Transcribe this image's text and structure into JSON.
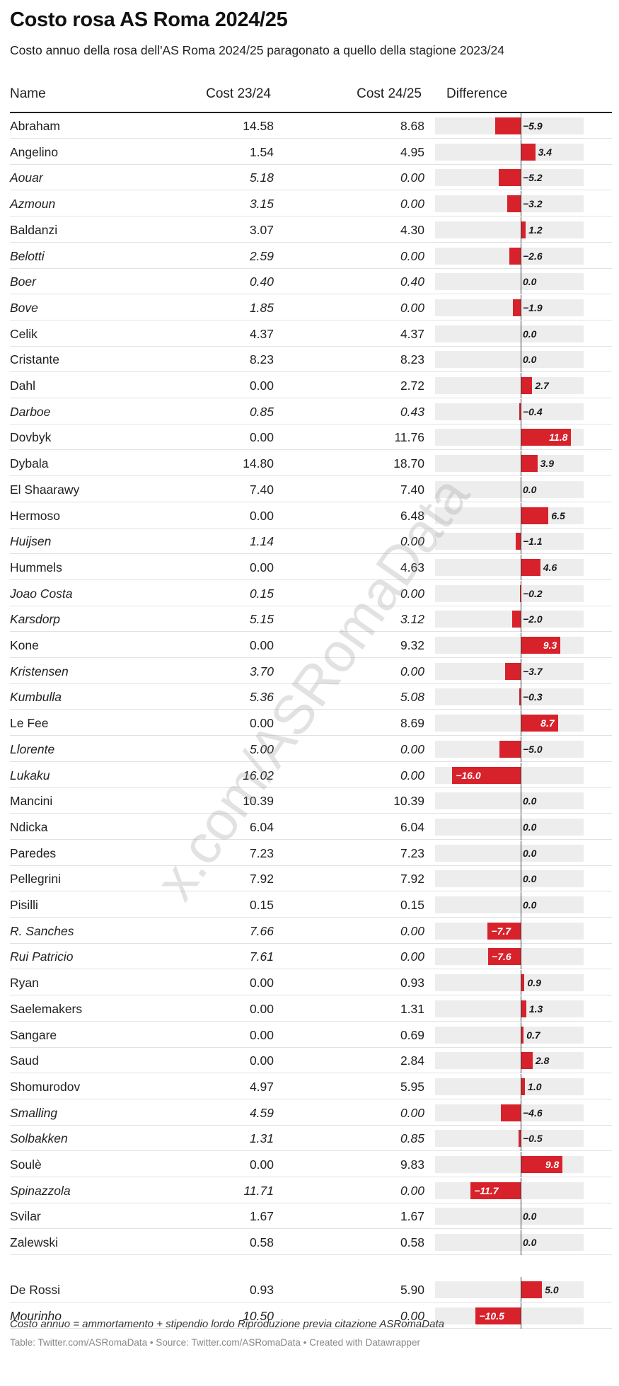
{
  "title": "Costo rosa AS Roma 2024/25",
  "subtitle": "Costo annuo della rosa dell'AS Roma 2024/25 paragonato a quello della stagione 2023/24",
  "headers": {
    "name": "Name",
    "cost_2324": "Cost 23/24",
    "cost_2425": "Cost 24/25",
    "difference": "Difference"
  },
  "watermark": "x.com/ASRomaData",
  "footnote": "Costo annuo = ammortamento + stipendio lordo Riproduzione previa citazione ASRomaData",
  "source": "Table: Twitter.com/ASRomaData • Source: Twitter.com/ASRomaData • Created with Datawrapper",
  "colors": {
    "bar": "#d7222c",
    "bar_bg": "#ededed"
  },
  "chart_data": {
    "type": "table",
    "diff_range": [
      -16.0,
      11.8
    ],
    "rows": [
      {
        "name": "Abraham",
        "c23": "14.58",
        "c24": "8.68",
        "diff": -5.9,
        "label": "−5.9",
        "italic": false
      },
      {
        "name": "Angelino",
        "c23": "1.54",
        "c24": "4.95",
        "diff": 3.4,
        "label": "3.4",
        "italic": false
      },
      {
        "name": "Aouar",
        "c23": "5.18",
        "c24": "0.00",
        "diff": -5.2,
        "label": "−5.2",
        "italic": true
      },
      {
        "name": "Azmoun",
        "c23": "3.15",
        "c24": "0.00",
        "diff": -3.2,
        "label": "−3.2",
        "italic": true
      },
      {
        "name": "Baldanzi",
        "c23": "3.07",
        "c24": "4.30",
        "diff": 1.2,
        "label": "1.2",
        "italic": false
      },
      {
        "name": "Belotti",
        "c23": "2.59",
        "c24": "0.00",
        "diff": -2.6,
        "label": "−2.6",
        "italic": true
      },
      {
        "name": "Boer",
        "c23": "0.40",
        "c24": "0.40",
        "diff": 0.0,
        "label": "0.0",
        "italic": true
      },
      {
        "name": "Bove",
        "c23": "1.85",
        "c24": "0.00",
        "diff": -1.9,
        "label": "−1.9",
        "italic": true
      },
      {
        "name": "Celik",
        "c23": "4.37",
        "c24": "4.37",
        "diff": 0.0,
        "label": "0.0",
        "italic": false
      },
      {
        "name": "Cristante",
        "c23": "8.23",
        "c24": "8.23",
        "diff": 0.0,
        "label": "0.0",
        "italic": false
      },
      {
        "name": "Dahl",
        "c23": "0.00",
        "c24": "2.72",
        "diff": 2.7,
        "label": "2.7",
        "italic": false
      },
      {
        "name": "Darboe",
        "c23": "0.85",
        "c24": "0.43",
        "diff": -0.4,
        "label": "−0.4",
        "italic": true
      },
      {
        "name": "Dovbyk",
        "c23": "0.00",
        "c24": "11.76",
        "diff": 11.8,
        "label": "11.8",
        "italic": false
      },
      {
        "name": "Dybala",
        "c23": "14.80",
        "c24": "18.70",
        "diff": 3.9,
        "label": "3.9",
        "italic": false
      },
      {
        "name": "El Shaarawy",
        "c23": "7.40",
        "c24": "7.40",
        "diff": 0.0,
        "label": "0.0",
        "italic": false
      },
      {
        "name": "Hermoso",
        "c23": "0.00",
        "c24": "6.48",
        "diff": 6.5,
        "label": "6.5",
        "italic": false
      },
      {
        "name": "Huijsen",
        "c23": "1.14",
        "c24": "0.00",
        "diff": -1.1,
        "label": "−1.1",
        "italic": true
      },
      {
        "name": "Hummels",
        "c23": "0.00",
        "c24": "4.63",
        "diff": 4.6,
        "label": "4.6",
        "italic": false
      },
      {
        "name": "Joao Costa",
        "c23": "0.15",
        "c24": "0.00",
        "diff": -0.2,
        "label": "−0.2",
        "italic": true
      },
      {
        "name": "Karsdorp",
        "c23": "5.15",
        "c24": "3.12",
        "diff": -2.0,
        "label": "−2.0",
        "italic": true
      },
      {
        "name": "Kone",
        "c23": "0.00",
        "c24": "9.32",
        "diff": 9.3,
        "label": "9.3",
        "italic": false
      },
      {
        "name": "Kristensen",
        "c23": "3.70",
        "c24": "0.00",
        "diff": -3.7,
        "label": "−3.7",
        "italic": true
      },
      {
        "name": "Kumbulla",
        "c23": "5.36",
        "c24": "5.08",
        "diff": -0.3,
        "label": "−0.3",
        "italic": true
      },
      {
        "name": "Le Fee",
        "c23": "0.00",
        "c24": "8.69",
        "diff": 8.7,
        "label": "8.7",
        "italic": false
      },
      {
        "name": "Llorente",
        "c23": "5.00",
        "c24": "0.00",
        "diff": -5.0,
        "label": "−5.0",
        "italic": true
      },
      {
        "name": "Lukaku",
        "c23": "16.02",
        "c24": "0.00",
        "diff": -16.0,
        "label": "−16.0",
        "italic": true
      },
      {
        "name": "Mancini",
        "c23": "10.39",
        "c24": "10.39",
        "diff": 0.0,
        "label": "0.0",
        "italic": false
      },
      {
        "name": "Ndicka",
        "c23": "6.04",
        "c24": "6.04",
        "diff": 0.0,
        "label": "0.0",
        "italic": false
      },
      {
        "name": "Paredes",
        "c23": "7.23",
        "c24": "7.23",
        "diff": 0.0,
        "label": "0.0",
        "italic": false
      },
      {
        "name": "Pellegrini",
        "c23": "7.92",
        "c24": "7.92",
        "diff": 0.0,
        "label": "0.0",
        "italic": false
      },
      {
        "name": "Pisilli",
        "c23": "0.15",
        "c24": "0.15",
        "diff": 0.0,
        "label": "0.0",
        "italic": false
      },
      {
        "name": "R. Sanches",
        "c23": "7.66",
        "c24": "0.00",
        "diff": -7.7,
        "label": "−7.7",
        "italic": true
      },
      {
        "name": "Rui Patricio",
        "c23": "7.61",
        "c24": "0.00",
        "diff": -7.6,
        "label": "−7.6",
        "italic": true
      },
      {
        "name": "Ryan",
        "c23": "0.00",
        "c24": "0.93",
        "diff": 0.9,
        "label": "0.9",
        "italic": false
      },
      {
        "name": "Saelemakers",
        "c23": "0.00",
        "c24": "1.31",
        "diff": 1.3,
        "label": "1.3",
        "italic": false
      },
      {
        "name": "Sangare",
        "c23": "0.00",
        "c24": "0.69",
        "diff": 0.7,
        "label": "0.7",
        "italic": false
      },
      {
        "name": "Saud",
        "c23": "0.00",
        "c24": "2.84",
        "diff": 2.8,
        "label": "2.8",
        "italic": false
      },
      {
        "name": "Shomurodov",
        "c23": "4.97",
        "c24": "5.95",
        "diff": 1.0,
        "label": "1.0",
        "italic": false
      },
      {
        "name": "Smalling",
        "c23": "4.59",
        "c24": "0.00",
        "diff": -4.6,
        "label": "−4.6",
        "italic": true
      },
      {
        "name": "Solbakken",
        "c23": "1.31",
        "c24": "0.85",
        "diff": -0.5,
        "label": "−0.5",
        "italic": true
      },
      {
        "name": "Soulè",
        "c23": "0.00",
        "c24": "9.83",
        "diff": 9.8,
        "label": "9.8",
        "italic": false
      },
      {
        "name": "Spinazzola",
        "c23": "11.71",
        "c24": "0.00",
        "diff": -11.7,
        "label": "−11.7",
        "italic": true
      },
      {
        "name": "Svilar",
        "c23": "1.67",
        "c24": "1.67",
        "diff": 0.0,
        "label": "0.0",
        "italic": false
      },
      {
        "name": "Zalewski",
        "c23": "0.58",
        "c24": "0.58",
        "diff": 0.0,
        "label": "0.0",
        "italic": false
      },
      {
        "name": "De Rossi",
        "c23": "0.93",
        "c24": "5.90",
        "diff": 5.0,
        "label": "5.0",
        "italic": false,
        "group": "staff"
      },
      {
        "name": "Mourinho",
        "c23": "10.50",
        "c24": "0.00",
        "diff": -10.5,
        "label": "−10.5",
        "italic": true,
        "group": "staff"
      }
    ]
  }
}
